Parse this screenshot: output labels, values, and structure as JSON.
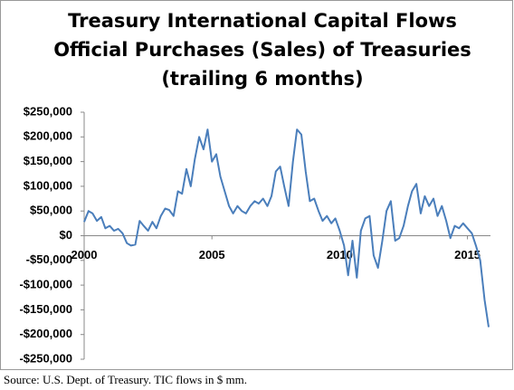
{
  "chart_data": {
    "type": "line",
    "title_lines": [
      "Treasury International Capital Flows",
      "Official Purchases (Sales) of Treasuries",
      "(trailing 6 months)"
    ],
    "source": "Source: U.S. Dept. of Treasury.  TIC flows in $ mm.",
    "xlim": [
      2000,
      2015.9
    ],
    "xticks": [
      2000,
      2005,
      2010,
      2015
    ],
    "ylim": [
      -250000,
      250000
    ],
    "yticks": [
      {
        "value": -250000,
        "label": "-$250,000"
      },
      {
        "value": -200000,
        "label": "-$200,000"
      },
      {
        "value": -150000,
        "label": "-$150,000"
      },
      {
        "value": -100000,
        "label": "-$100,000"
      },
      {
        "value": -50000,
        "label": "-$50,000"
      },
      {
        "value": 0,
        "label": "$0"
      },
      {
        "value": 50000,
        "label": "$50,000"
      },
      {
        "value": 100000,
        "label": "$100,000"
      },
      {
        "value": 150000,
        "label": "$150,000"
      },
      {
        "value": 200000,
        "label": "$200,000"
      },
      {
        "value": 250000,
        "label": "$250,000"
      }
    ],
    "grid": false,
    "series": [
      {
        "color": "#4a7ebb",
        "x": [
          2000.0,
          2000.17,
          2000.33,
          2000.5,
          2000.67,
          2000.83,
          2001.0,
          2001.17,
          2001.33,
          2001.5,
          2001.67,
          2001.83,
          2002.0,
          2002.17,
          2002.33,
          2002.5,
          2002.67,
          2002.83,
          2003.0,
          2003.17,
          2003.33,
          2003.5,
          2003.67,
          2003.83,
          2004.0,
          2004.17,
          2004.33,
          2004.5,
          2004.67,
          2004.83,
          2005.0,
          2005.17,
          2005.33,
          2005.5,
          2005.67,
          2005.83,
          2006.0,
          2006.17,
          2006.33,
          2006.5,
          2006.67,
          2006.83,
          2007.0,
          2007.17,
          2007.33,
          2007.5,
          2007.67,
          2007.83,
          2008.0,
          2008.17,
          2008.33,
          2008.5,
          2008.67,
          2008.83,
          2009.0,
          2009.17,
          2009.33,
          2009.5,
          2009.67,
          2009.83,
          2010.0,
          2010.17,
          2010.33,
          2010.5,
          2010.67,
          2010.83,
          2011.0,
          2011.17,
          2011.33,
          2011.5,
          2011.67,
          2011.83,
          2012.0,
          2012.17,
          2012.33,
          2012.5,
          2012.67,
          2012.83,
          2013.0,
          2013.17,
          2013.33,
          2013.5,
          2013.67,
          2013.83,
          2014.0,
          2014.17,
          2014.33,
          2014.5,
          2014.67,
          2014.83,
          2015.0,
          2015.17,
          2015.33,
          2015.5,
          2015.67,
          2015.83
        ],
        "values": [
          28000,
          50000,
          45000,
          30000,
          38000,
          15000,
          20000,
          10000,
          14000,
          5000,
          -15000,
          -20000,
          -18000,
          30000,
          20000,
          10000,
          28000,
          15000,
          40000,
          55000,
          52000,
          40000,
          90000,
          85000,
          135000,
          100000,
          155000,
          200000,
          175000,
          215000,
          150000,
          165000,
          120000,
          90000,
          60000,
          45000,
          60000,
          50000,
          45000,
          60000,
          70000,
          65000,
          75000,
          60000,
          80000,
          130000,
          140000,
          100000,
          60000,
          150000,
          215000,
          205000,
          130000,
          70000,
          75000,
          50000,
          30000,
          40000,
          25000,
          35000,
          10000,
          -20000,
          -80000,
          -10000,
          -85000,
          10000,
          35000,
          40000,
          -40000,
          -65000,
          -10000,
          50000,
          70000,
          -10000,
          -5000,
          20000,
          60000,
          90000,
          105000,
          45000,
          80000,
          60000,
          75000,
          40000,
          60000,
          30000,
          -5000,
          20000,
          15000,
          25000,
          15000,
          5000,
          -20000,
          -50000,
          -130000,
          -185000
        ]
      }
    ]
  }
}
